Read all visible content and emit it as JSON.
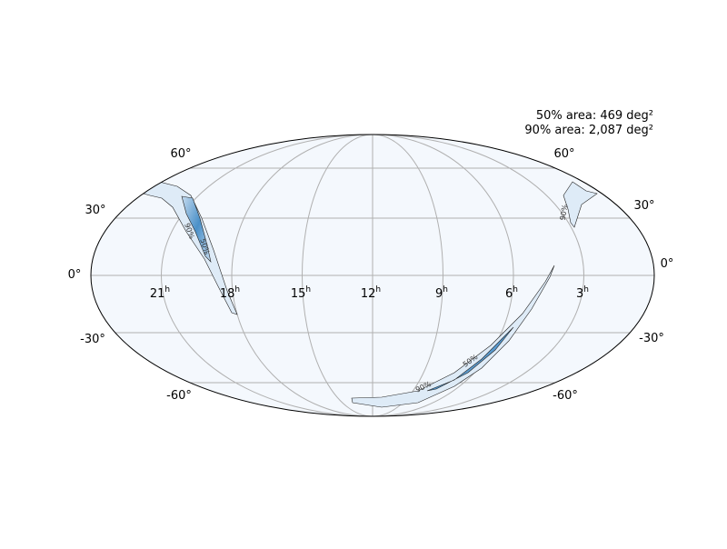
{
  "area_labels": [
    "50% area: 469 deg²",
    "90% area: 2,087 deg²"
  ],
  "ra_labels": [
    {
      "hour": "21",
      "unit": "h"
    },
    {
      "hour": "18",
      "unit": "h"
    },
    {
      "hour": "15",
      "unit": "h"
    },
    {
      "hour": "12",
      "unit": "h"
    },
    {
      "hour": "9",
      "unit": "h"
    },
    {
      "hour": "6",
      "unit": "h"
    },
    {
      "hour": "3",
      "unit": "h"
    }
  ],
  "dec_labels_left": [
    "60°",
    "30°",
    "0°",
    "-30°",
    "-60°"
  ],
  "dec_labels_right": [
    "60°",
    "30°",
    "0°",
    "-30°",
    "-60°"
  ],
  "contour_labels": [
    "90%",
    "50%",
    "50%",
    "90%",
    "90%"
  ]
}
